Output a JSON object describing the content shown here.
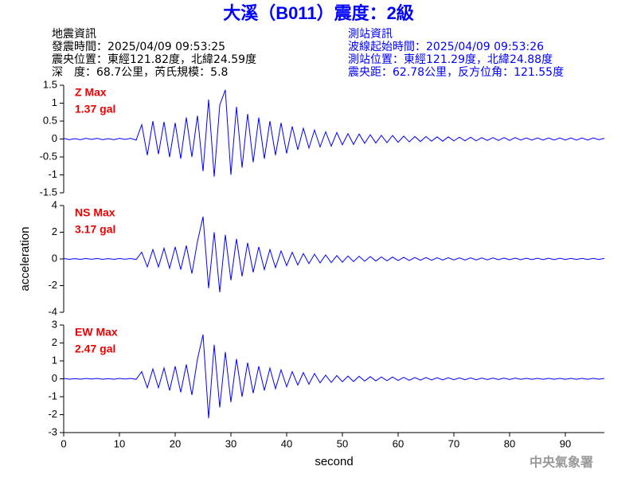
{
  "header": {
    "title": "大溪（B011）震度：2級",
    "left": [
      "地震資訊",
      "發震時間：2025/04/09 09:53:25",
      "震央位置：東經121.82度，北緯24.59度",
      "深　度：68.7公里，芮氏規模：5.8"
    ],
    "right": [
      "測站資訊",
      "波線起始時間：2025/04/09 09:53:26",
      "測站位置：東經121.29度，北緯24.88度",
      "震央距：62.78公里，反方位角：121.55度"
    ]
  },
  "footer": {
    "credit": "中央氣象署"
  },
  "chart_data": [
    {
      "type": "line",
      "annotations": [
        "Z Max",
        "1.37 gal"
      ],
      "x": [
        0,
        1,
        2,
        3,
        4,
        5,
        6,
        7,
        8,
        9,
        10,
        11,
        12,
        13,
        14,
        15,
        16,
        17,
        18,
        19,
        20,
        21,
        22,
        23,
        24,
        25,
        26,
        27,
        28,
        29,
        30,
        31,
        32,
        33,
        34,
        35,
        36,
        37,
        38,
        39,
        40,
        41,
        42,
        43,
        44,
        45,
        46,
        47,
        48,
        49,
        50,
        51,
        52,
        53,
        54,
        55,
        56,
        57,
        58,
        59,
        60,
        61,
        62,
        63,
        64,
        65,
        66,
        67,
        68,
        69,
        70,
        71,
        72,
        73,
        74,
        75,
        76,
        77,
        78,
        79,
        80,
        81,
        82,
        83,
        84,
        85,
        86,
        87,
        88,
        89,
        90,
        91,
        92,
        93,
        94,
        95,
        96,
        97
      ],
      "series": [
        {
          "color": "#0000ff",
          "values": [
            0.02,
            -0.02,
            0.01,
            -0.02,
            0.02,
            -0.01,
            0.02,
            -0.02,
            0.01,
            -0.02,
            0.02,
            -0.01,
            0.02,
            -0.03,
            0.4,
            -0.45,
            0.5,
            -0.42,
            0.48,
            -0.5,
            0.45,
            -0.55,
            0.6,
            -0.5,
            0.65,
            -0.9,
            1.1,
            -1.05,
            0.95,
            1.37,
            -1.0,
            0.9,
            -0.8,
            0.7,
            -0.65,
            0.6,
            -0.55,
            0.5,
            -0.45,
            0.45,
            -0.4,
            0.35,
            -0.3,
            0.3,
            -0.25,
            0.25,
            -0.22,
            0.2,
            -0.2,
            0.18,
            -0.16,
            0.15,
            -0.15,
            0.14,
            -0.12,
            0.12,
            -0.11,
            0.1,
            -0.1,
            0.1,
            -0.09,
            0.08,
            -0.08,
            0.07,
            -0.07,
            0.07,
            -0.06,
            0.06,
            -0.06,
            0.06,
            -0.05,
            0.05,
            -0.05,
            0.05,
            -0.05,
            0.04,
            -0.04,
            0.04,
            -0.04,
            0.04,
            -0.04,
            0.04,
            -0.03,
            0.03,
            -0.03,
            0.03,
            -0.03,
            0.03,
            -0.03,
            0.03,
            -0.03,
            0.03,
            -0.03,
            0.03,
            -0.03,
            0.03,
            -0.02,
            0.02
          ]
        }
      ],
      "xlim": [
        0,
        97
      ],
      "ylim": [
        -1.5,
        1.5
      ],
      "yticks": [
        -1.5,
        -1,
        -0.5,
        0,
        0.5,
        1,
        1.5
      ]
    },
    {
      "type": "line",
      "annotations": [
        "NS Max",
        "3.17 gal"
      ],
      "y_label": "acceleration",
      "x": [
        0,
        1,
        2,
        3,
        4,
        5,
        6,
        7,
        8,
        9,
        10,
        11,
        12,
        13,
        14,
        15,
        16,
        17,
        18,
        19,
        20,
        21,
        22,
        23,
        24,
        25,
        26,
        27,
        28,
        29,
        30,
        31,
        32,
        33,
        34,
        35,
        36,
        37,
        38,
        39,
        40,
        41,
        42,
        43,
        44,
        45,
        46,
        47,
        48,
        49,
        50,
        51,
        52,
        53,
        54,
        55,
        56,
        57,
        58,
        59,
        60,
        61,
        62,
        63,
        64,
        65,
        66,
        67,
        68,
        69,
        70,
        71,
        72,
        73,
        74,
        75,
        76,
        77,
        78,
        79,
        80,
        81,
        82,
        83,
        84,
        85,
        86,
        87,
        88,
        89,
        90,
        91,
        92,
        93,
        94,
        95,
        96,
        97
      ],
      "series": [
        {
          "color": "#0000ff",
          "values": [
            0.03,
            -0.03,
            0.02,
            -0.03,
            0.03,
            -0.02,
            0.03,
            -0.03,
            0.02,
            -0.03,
            0.03,
            -0.02,
            0.03,
            -0.04,
            0.5,
            -0.6,
            0.7,
            -0.6,
            0.8,
            -0.7,
            0.9,
            -0.8,
            1.0,
            -1.1,
            1.3,
            3.17,
            -2.2,
            2.0,
            -2.5,
            1.8,
            -1.6,
            1.5,
            -1.3,
            1.2,
            -1.0,
            0.9,
            -0.8,
            0.7,
            -0.65,
            0.6,
            -0.5,
            0.5,
            -0.45,
            0.4,
            -0.35,
            0.35,
            -0.3,
            0.3,
            -0.28,
            0.25,
            -0.25,
            0.22,
            -0.2,
            0.2,
            -0.18,
            0.18,
            -0.16,
            0.15,
            -0.15,
            0.14,
            -0.13,
            0.12,
            -0.12,
            0.11,
            -0.1,
            0.1,
            -0.1,
            0.09,
            -0.09,
            0.09,
            -0.08,
            0.08,
            -0.08,
            0.08,
            -0.07,
            0.07,
            -0.07,
            0.07,
            -0.06,
            0.06,
            -0.06,
            0.06,
            -0.06,
            0.05,
            -0.05,
            0.05,
            -0.05,
            0.05,
            -0.05,
            0.05,
            -0.04,
            0.04,
            -0.04,
            0.04,
            -0.04,
            0.04,
            -0.04,
            0.04
          ]
        }
      ],
      "xlim": [
        0,
        97
      ],
      "ylim": [
        -4,
        4
      ],
      "yticks": [
        -4,
        -2,
        0,
        2,
        4
      ]
    },
    {
      "type": "line",
      "annotations": [
        "EW Max",
        "2.47 gal"
      ],
      "x_label": "second",
      "x": [
        0,
        1,
        2,
        3,
        4,
        5,
        6,
        7,
        8,
        9,
        10,
        11,
        12,
        13,
        14,
        15,
        16,
        17,
        18,
        19,
        20,
        21,
        22,
        23,
        24,
        25,
        26,
        27,
        28,
        29,
        30,
        31,
        32,
        33,
        34,
        35,
        36,
        37,
        38,
        39,
        40,
        41,
        42,
        43,
        44,
        45,
        46,
        47,
        48,
        49,
        50,
        51,
        52,
        53,
        54,
        55,
        56,
        57,
        58,
        59,
        60,
        61,
        62,
        63,
        64,
        65,
        66,
        67,
        68,
        69,
        70,
        71,
        72,
        73,
        74,
        75,
        76,
        77,
        78,
        79,
        80,
        81,
        82,
        83,
        84,
        85,
        86,
        87,
        88,
        89,
        90,
        91,
        92,
        93,
        94,
        95,
        96,
        97
      ],
      "series": [
        {
          "color": "#0000ff",
          "values": [
            0.02,
            -0.02,
            0.01,
            -0.02,
            0.02,
            -0.01,
            0.02,
            -0.02,
            0.01,
            -0.02,
            0.02,
            -0.01,
            0.02,
            -0.03,
            0.4,
            -0.5,
            0.55,
            -0.5,
            0.6,
            -0.65,
            0.7,
            -0.75,
            0.8,
            -0.9,
            1.1,
            2.47,
            -2.2,
            1.9,
            -1.6,
            1.5,
            -1.3,
            1.1,
            -1.0,
            0.9,
            -0.8,
            0.7,
            -0.65,
            0.6,
            -0.55,
            0.5,
            -0.45,
            0.4,
            -0.35,
            0.35,
            -0.3,
            0.3,
            -0.22,
            0.2,
            -0.2,
            0.18,
            -0.16,
            0.15,
            -0.15,
            0.14,
            -0.12,
            0.12,
            -0.11,
            0.1,
            -0.1,
            0.1,
            -0.09,
            0.08,
            -0.08,
            0.07,
            -0.07,
            0.07,
            -0.06,
            0.06,
            -0.06,
            0.06,
            -0.05,
            0.05,
            -0.05,
            0.05,
            -0.05,
            0.04,
            -0.04,
            0.04,
            -0.04,
            0.04,
            -0.04,
            0.04,
            -0.03,
            0.03,
            -0.03,
            0.03,
            -0.03,
            0.03,
            -0.03,
            0.03,
            -0.03,
            0.03,
            -0.03,
            0.03,
            -0.03,
            0.03,
            -0.02,
            0.02
          ]
        }
      ],
      "xlim": [
        0,
        97
      ],
      "ylim": [
        -3,
        3
      ],
      "yticks": [
        -3,
        -2,
        -1,
        0,
        1,
        2,
        3
      ],
      "xticks": [
        0,
        10,
        20,
        30,
        40,
        50,
        60,
        70,
        80,
        90
      ]
    }
  ]
}
